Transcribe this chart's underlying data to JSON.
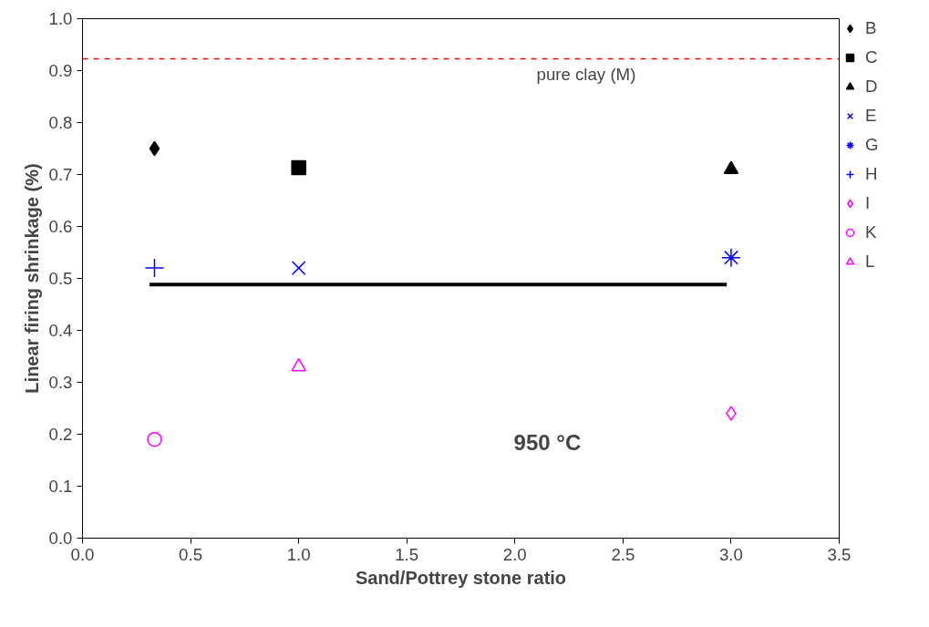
{
  "chart_data": {
    "type": "scatter",
    "xlabel": "Sand/Pottrey stone ratio",
    "ylabel": "Linear firing shrinkage (%)",
    "xlim": [
      0,
      3.5
    ],
    "xticks": [
      {
        "value": 0,
        "label": "0.0"
      },
      0.5,
      {
        "value": 1,
        "label": "1.0"
      },
      1.5,
      {
        "value": 2,
        "label": "2.0"
      },
      2.5,
      {
        "value": 3,
        "label": "3.0"
      },
      3.5
    ],
    "ylim": [
      0,
      1
    ],
    "yticks": [
      {
        "value": 0,
        "label": "0.0"
      },
      0.1,
      0.2,
      0.3,
      0.4,
      0.5,
      0.6,
      0.7,
      0.8,
      0.9,
      {
        "value": 1,
        "label": "1.0"
      }
    ],
    "grid": false,
    "legend": "right",
    "series": [
      {
        "name": "B",
        "color": "#000000",
        "marker": "diamond",
        "x": [
          0.333
        ],
        "values": [
          0.75
        ]
      },
      {
        "name": "C",
        "color": "#000000",
        "marker": "square",
        "x": [
          1.0
        ],
        "values": [
          0.713
        ]
      },
      {
        "name": "D",
        "color": "#000000",
        "marker": "triangle",
        "x": [
          3.0
        ],
        "values": [
          0.71
        ]
      },
      {
        "name": "E",
        "color": "#0000ff",
        "marker": "x",
        "x": [
          1.0
        ],
        "values": [
          0.52
        ]
      },
      {
        "name": "G",
        "color": "#0000ff",
        "x": [
          3.0
        ],
        "values": [
          0.54
        ]
      },
      {
        "name": "H",
        "color": "#0000ff",
        "marker": "cross",
        "x": [
          0.333
        ],
        "values": [
          0.52
        ]
      },
      {
        "name": "I",
        "color": "#ff00ff",
        "marker": "diamond",
        "x": [
          3.0
        ],
        "values": [
          0.24
        ]
      },
      {
        "name": "K",
        "color": "#ff00ff",
        "marker": "circle",
        "x": [
          0.333
        ],
        "values": [
          0.19
        ]
      },
      {
        "name": "L",
        "color": "#ff00ff",
        "marker": "triangle",
        "x": [
          1.0
        ],
        "values": [
          0.33
        ]
      },
      {
        "type": "line",
        "color": "#000000",
        "x": [
          0.31,
          2.98
        ],
        "values": [
          0.488,
          0.488
        ]
      }
    ],
    "ref_lines": [
      {
        "axis": "y",
        "value": 0.923,
        "label": "pure clay (M)",
        "color": "#ff0000",
        "line_style": "dashed"
      }
    ],
    "annotations": [
      "950 °C"
    ]
  }
}
